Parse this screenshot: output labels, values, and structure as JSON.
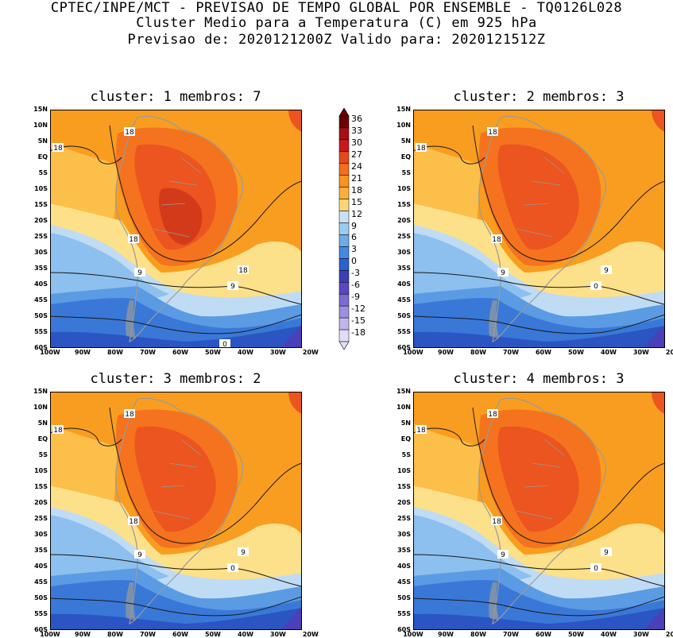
{
  "header": {
    "line1": "CPTEC/INPE/MCT - PREVISAO DE TEMPO GLOBAL POR ENSEMBLE - TQ0126L028",
    "line2": "Cluster Medio para a Temperatura (C) em 925 hPa",
    "line3": "Previsao de: 2020121200Z   Valido para: 2020121512Z"
  },
  "axes": {
    "lat_labels": [
      "15N",
      "10N",
      "5N",
      "EQ",
      "5S",
      "10S",
      "15S",
      "20S",
      "25S",
      "30S",
      "35S",
      "40S",
      "45S",
      "50S",
      "55S",
      "60S"
    ],
    "lon_labels": [
      "100W",
      "90W",
      "80W",
      "70W",
      "60W",
      "50W",
      "40W",
      "30W",
      "20W"
    ]
  },
  "colorbar": {
    "levels": [
      "36",
      "33",
      "30",
      "27",
      "24",
      "21",
      "18",
      "15",
      "12",
      "9",
      "6",
      "3",
      "0",
      "-3",
      "-6",
      "-9",
      "-12",
      "-15",
      "-18"
    ],
    "colors": [
      "#6b0000",
      "#a50f15",
      "#cb181d",
      "#e34a1c",
      "#f26d1f",
      "#f7931e",
      "#fbb03b",
      "#fdd67a",
      "#c8e0f4",
      "#9ccbf0",
      "#6eabe8",
      "#4589de",
      "#2a62cc",
      "#3a41b8",
      "#5a46c4",
      "#7a6ad2",
      "#9c8fe0",
      "#c0b6ec",
      "#e2dcf6"
    ]
  },
  "panels": [
    {
      "title": "cluster: 1   membros: 7",
      "contour_labels": [
        "18",
        "18",
        "18",
        "18",
        "9",
        "9",
        "0"
      ]
    },
    {
      "title": "cluster: 2   membros: 3",
      "contour_labels": [
        "18",
        "18",
        "18",
        "9",
        "9",
        "0"
      ]
    },
    {
      "title": "cluster: 3   membros: 2",
      "contour_labels": [
        "18",
        "18",
        "18",
        "9",
        "9",
        "0"
      ]
    },
    {
      "title": "cluster: 4   membros: 3",
      "contour_labels": [
        "18",
        "18",
        "18",
        "9",
        "9",
        "0"
      ]
    }
  ]
}
